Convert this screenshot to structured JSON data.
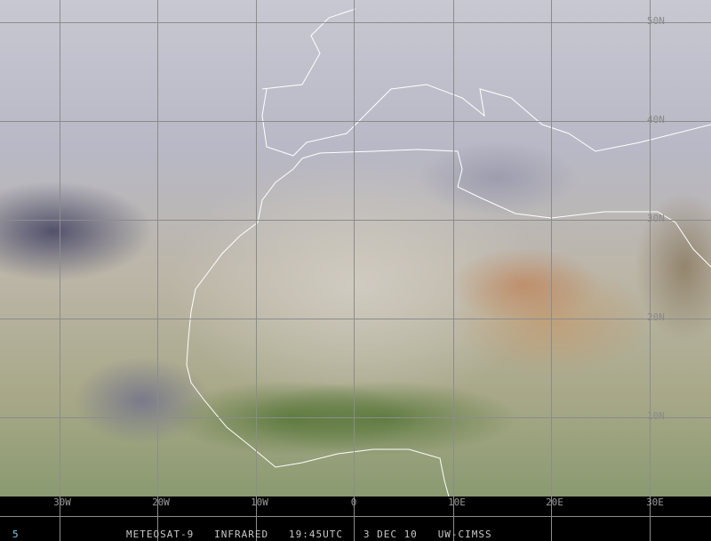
{
  "image": {
    "satellite": "METEOSAT-9",
    "channel": "INFRARED",
    "time": "19:45UTC",
    "date": "3 DEC 10",
    "source": "UW-CIMSS",
    "frame": "5"
  },
  "longitude_labels": [
    "30W",
    "20W",
    "10W",
    "0",
    "10E",
    "20E",
    "30E"
  ],
  "latitude_labels": [
    "50N",
    "40N",
    "30N",
    "20N",
    "10N"
  ],
  "colors": {
    "grid": "#8c8c8c",
    "coastline": "#ffffff",
    "background": "#000000",
    "frame_number": "#7fd0e8"
  }
}
